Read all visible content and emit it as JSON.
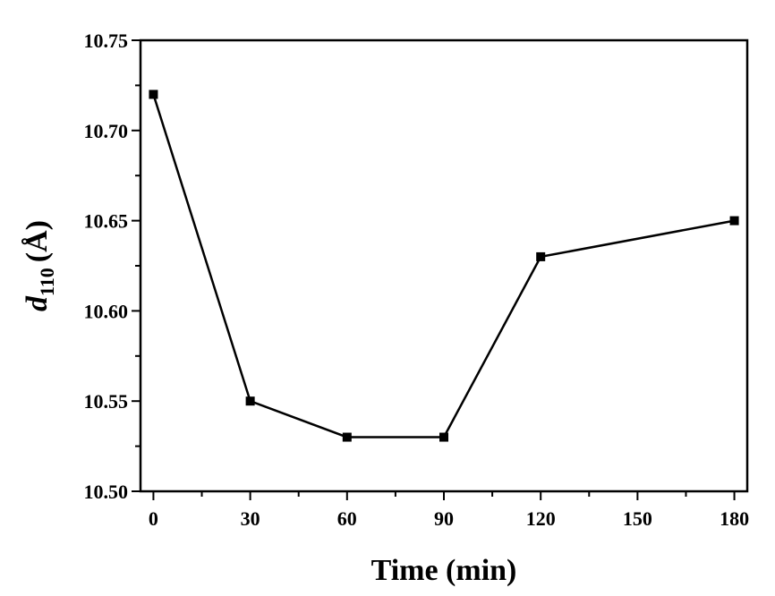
{
  "chart_data": {
    "type": "line",
    "xlabel": "Time (min)",
    "ylabel": {
      "symbol": "d",
      "subscript": "110",
      "unit": "(Å)"
    },
    "xlim": [
      -4,
      184
    ],
    "ylim": [
      10.5,
      10.75
    ],
    "xticks": [
      0,
      30,
      60,
      90,
      120,
      150,
      180
    ],
    "xtick_labels": [
      "0",
      "30",
      "60",
      "90",
      "120",
      "150",
      "180"
    ],
    "yticks": [
      10.5,
      10.55,
      10.6,
      10.65,
      10.7,
      10.75
    ],
    "ytick_labels": [
      "10.50",
      "10.55",
      "10.60",
      "10.65",
      "10.70",
      "10.75"
    ],
    "grid": false,
    "series": [
      {
        "marker": "square",
        "color": "#000000",
        "x": [
          0,
          30,
          60,
          90,
          120,
          180
        ],
        "y": [
          10.72,
          10.55,
          10.53,
          10.53,
          10.63,
          10.65
        ]
      }
    ]
  }
}
